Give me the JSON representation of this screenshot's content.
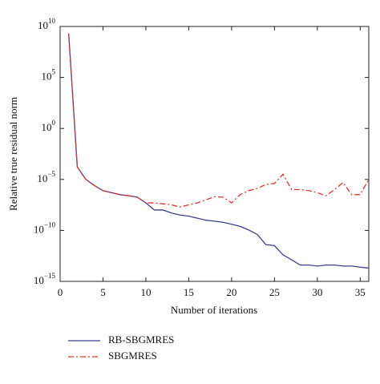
{
  "chart_data": {
    "type": "line",
    "xlabel": "Number of iterations",
    "ylabel": "Relative true residual norm",
    "x": [
      1,
      2,
      3,
      4,
      5,
      6,
      7,
      8,
      9,
      10,
      11,
      12,
      13,
      14,
      15,
      16,
      17,
      18,
      19,
      20,
      21,
      22,
      23,
      24,
      25,
      26,
      27,
      28,
      29,
      30,
      31,
      32,
      33,
      34,
      35,
      36
    ],
    "series": [
      {
        "name": "RB-SBGMRES",
        "color": "#3b3f93",
        "style": "solid",
        "values": [
          2000000000.0,
          0.00017,
          1e-05,
          2.5e-06,
          8e-07,
          5e-07,
          3.2e-07,
          2.5e-07,
          1.8e-07,
          5e-08,
          1e-08,
          1e-08,
          5e-09,
          3.2e-09,
          2.5e-09,
          1.6e-09,
          1e-09,
          8e-10,
          6.3e-10,
          4e-10,
          2.5e-10,
          1.1e-10,
          4e-11,
          4e-12,
          3.2e-12,
          4e-13,
          1.3e-13,
          4e-14,
          4e-14,
          3.2e-14,
          4e-14,
          4e-14,
          3.2e-14,
          3.2e-14,
          2.5e-14,
          2e-14
        ]
      },
      {
        "name": "SBGMRES",
        "color": "#e0322a",
        "style": "dashdot",
        "values": [
          2000000000.0,
          0.00017,
          1e-05,
          2.5e-06,
          8e-07,
          5e-07,
          3.2e-07,
          2.5e-07,
          1.8e-07,
          5e-08,
          5e-08,
          4e-08,
          3.2e-08,
          2e-08,
          3.2e-08,
          5e-08,
          1e-07,
          2e-07,
          1.8e-07,
          5e-08,
          3.2e-07,
          8e-07,
          1.3e-06,
          3.2e-06,
          4e-06,
          3.2e-05,
          1e-06,
          1e-06,
          8e-07,
          5e-07,
          2.5e-07,
          1e-06,
          5e-06,
          3.2e-07,
          3.2e-07,
          1e-05
        ]
      }
    ],
    "xlim": [
      0,
      36
    ],
    "xticks": [
      0,
      5,
      10,
      15,
      20,
      25,
      30,
      35
    ],
    "ylim": [
      1e-15,
      10000000000.0
    ],
    "log_y": true,
    "yticks": [
      {
        "value": 1e-15,
        "label": "10",
        "exponent": "−15"
      },
      {
        "value": 1e-10,
        "label": "10",
        "exponent": "−10"
      },
      {
        "value": 1e-05,
        "label": "10",
        "exponent": "−5"
      },
      {
        "value": 1,
        "label": "10",
        "exponent": "0"
      },
      {
        "value": 100000.0,
        "label": "10",
        "exponent": "5"
      },
      {
        "value": 10000000000.0,
        "label": "10",
        "exponent": "10"
      }
    ],
    "grid": false,
    "legend": "bottom"
  }
}
